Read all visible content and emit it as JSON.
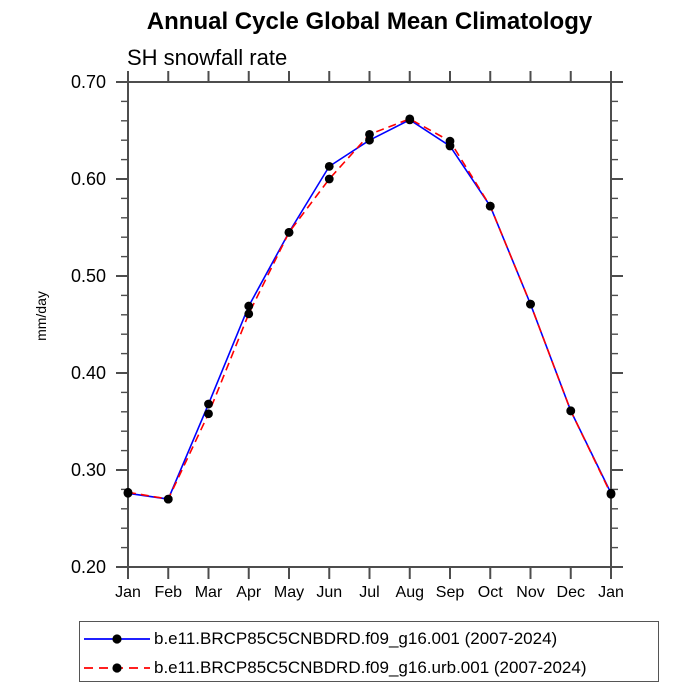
{
  "title": "Annual Cycle Global Mean Climatology",
  "subtitle": "SH snowfall rate",
  "chart_data": {
    "type": "line",
    "title": "Annual Cycle Global Mean Climatology",
    "subtitle": "SH snowfall rate",
    "ylabel": "mm/day",
    "xlabel": "",
    "categories": [
      "Jan",
      "Feb",
      "Mar",
      "Apr",
      "May",
      "Jun",
      "Jul",
      "Aug",
      "Sep",
      "Oct",
      "Nov",
      "Dec",
      "Jan"
    ],
    "ylim": [
      0.2,
      0.7
    ],
    "yticks": [
      0.2,
      0.3,
      0.4,
      0.5,
      0.6,
      0.7
    ],
    "minor_tick_step": 0.02,
    "grid": false,
    "legend_position": "bottom-left",
    "series": [
      {
        "name": "b.e11.BRCP85C5CNBDRD.f09_g16.001 (2007-2024)",
        "color": "#0000ff",
        "line_style": "solid",
        "marker": "black-dot",
        "marker_color": "#000000",
        "values": [
          0.276,
          0.27,
          0.368,
          0.469,
          0.545,
          0.613,
          0.64,
          0.661,
          0.634,
          0.572,
          0.471,
          0.361,
          0.276
        ]
      },
      {
        "name": "b.e11.BRCP85C5CNBDRD.f09_g16.urb.001 (2007-2024)",
        "color": "#ff0000",
        "line_style": "dashed",
        "marker": "black-dot",
        "marker_color": "#000000",
        "values": [
          0.277,
          0.27,
          0.358,
          0.461,
          0.545,
          0.6,
          0.646,
          0.662,
          0.639,
          0.572,
          0.471,
          0.361,
          0.275
        ]
      }
    ]
  }
}
